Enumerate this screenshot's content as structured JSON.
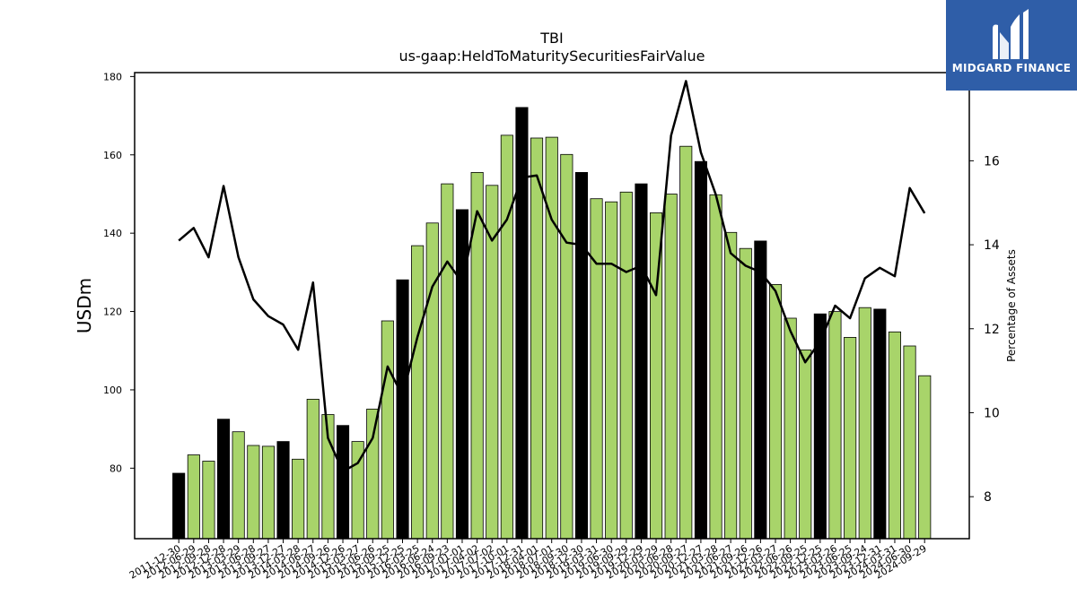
{
  "brand": {
    "name": "MIDGARD FINANCE",
    "logo_icon": "midgard-logo-icon",
    "background": "#2f5ea8"
  },
  "chart_data": {
    "type": "bar",
    "title": "TBI",
    "subtitle": "us-gaap:HeldToMaturitySecuritiesFairValue",
    "ylabel": "USDm",
    "y2label": "Percentage of Assets",
    "ylim": [
      62,
      181
    ],
    "y2lim": [
      7,
      18.1
    ],
    "yticks": [
      80,
      100,
      120,
      140,
      160,
      180
    ],
    "y2ticks": [
      8,
      10,
      12,
      14,
      16
    ],
    "colors": {
      "bar": "#a8d46a",
      "bar_highlight": "#000000",
      "line": "#000000"
    },
    "categories": [
      "2011-12-30",
      "2012-06-29",
      "2012-09-28",
      "2012-12-28",
      "2013-03-29",
      "2013-06-28",
      "2013-09-27",
      "2013-12-27",
      "2014-03-28",
      "2014-06-27",
      "2014-09-26",
      "2014-12-26",
      "2015-03-27",
      "2015-06-26",
      "2015-09-25",
      "2015-12-25",
      "2016-03-25",
      "2016-06-24",
      "2016-09-23",
      "2017-01-01",
      "2017-04-02",
      "2017-07-02",
      "2017-10-01",
      "2017-12-31",
      "2018-04-01",
      "2018-07-01",
      "2018-09-30",
      "2018-12-30",
      "2019-03-31",
      "2019-06-30",
      "2019-09-29",
      "2019-12-29",
      "2020-03-29",
      "2020-06-28",
      "2020-09-27",
      "2020-12-27",
      "2021-03-28",
      "2021-06-27",
      "2021-09-26",
      "2021-12-26",
      "2022-03-27",
      "2022-06-26",
      "2022-09-25",
      "2022-12-25",
      "2023-03-26",
      "2023-06-25",
      "2023-09-24",
      "2023-12-31",
      "2024-03-31",
      "2024-06-30",
      "2024-09-29"
    ],
    "series": [
      {
        "kind": "bar",
        "values": [
          78.7,
          83.4,
          81.8,
          92.5,
          89.3,
          85.8,
          85.6,
          86.8,
          82.3,
          97.6,
          93.7,
          90.9,
          86.8,
          95.1,
          117.6,
          128.1,
          136.8,
          142.6,
          152.6,
          146.0,
          155.5,
          152.2,
          165.0,
          172.1,
          164.3,
          164.5,
          160.1,
          155.5,
          148.8,
          148.0,
          150.5,
          152.6,
          145.2,
          150.0,
          162.2,
          158.3,
          149.8,
          140.2,
          136.1,
          138.0,
          126.9,
          118.3,
          110.2,
          119.4,
          120.0,
          113.4,
          121.0,
          120.6,
          114.8,
          111.2,
          103.6
        ],
        "highlighted": [
          0,
          3,
          7,
          11,
          15,
          19,
          23,
          27,
          31,
          35,
          39,
          43,
          47
        ]
      },
      {
        "kind": "line",
        "axis": "right",
        "values": [
          14.1,
          14.4,
          13.7,
          15.4,
          13.7,
          12.7,
          12.3,
          12.1,
          11.5,
          13.1,
          9.4,
          8.6,
          8.8,
          9.4,
          11.1,
          10.4,
          11.8,
          13.0,
          13.6,
          13.1,
          14.8,
          14.1,
          14.6,
          15.6,
          15.65,
          14.6,
          14.05,
          14.0,
          13.55,
          13.55,
          13.35,
          13.5,
          12.8,
          16.6,
          17.9,
          16.2,
          15.2,
          13.8,
          13.5,
          13.35,
          12.9,
          11.95,
          11.2,
          11.7,
          12.55,
          12.25,
          13.2,
          13.45,
          13.25,
          15.35,
          14.75
        ]
      }
    ],
    "grid": false,
    "legend": "none"
  }
}
